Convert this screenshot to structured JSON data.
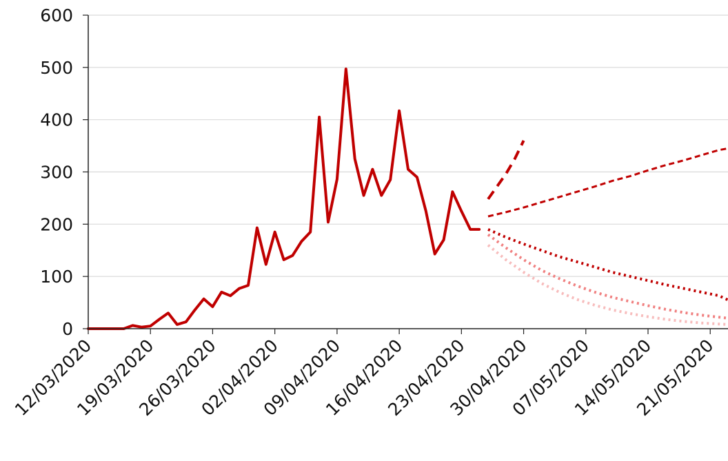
{
  "chart_data": {
    "type": "line",
    "title": "",
    "xlabel": "",
    "ylabel": "",
    "ylim": [
      0,
      600
    ],
    "y_ticks": [
      0,
      100,
      200,
      300,
      400,
      500,
      600
    ],
    "xlim": [
      "12/03/2020",
      "23/05/2020"
    ],
    "x_ticks": [
      "12/03/2020",
      "19/03/2020",
      "26/03/2020",
      "02/04/2020",
      "09/04/2020",
      "16/04/2020",
      "23/04/2020",
      "30/04/2020",
      "07/05/2020",
      "14/05/2020",
      "21/05/2020"
    ],
    "grid": "horizontal",
    "series": [
      {
        "style": "solid",
        "color": "#c00000",
        "x": [
          "12/03/2020",
          "13/03/2020",
          "14/03/2020",
          "15/03/2020",
          "16/03/2020",
          "17/03/2020",
          "18/03/2020",
          "19/03/2020",
          "20/03/2020",
          "21/03/2020",
          "22/03/2020",
          "23/03/2020",
          "24/03/2020",
          "25/03/2020",
          "26/03/2020",
          "27/03/2020",
          "28/03/2020",
          "29/03/2020",
          "30/03/2020",
          "31/03/2020",
          "01/04/2020",
          "02/04/2020",
          "03/04/2020",
          "04/04/2020",
          "05/04/2020",
          "06/04/2020",
          "07/04/2020",
          "08/04/2020",
          "09/04/2020",
          "10/04/2020",
          "11/04/2020",
          "12/04/2020",
          "13/04/2020",
          "14/04/2020",
          "15/04/2020",
          "16/04/2020",
          "17/04/2020",
          "18/04/2020",
          "19/04/2020",
          "20/04/2020",
          "21/04/2020",
          "22/04/2020",
          "23/04/2020",
          "24/04/2020",
          "25/04/2020"
        ],
        "y": [
          0,
          0,
          0,
          0,
          0,
          6,
          3,
          5,
          18,
          30,
          8,
          13,
          36,
          57,
          42,
          70,
          63,
          77,
          83,
          193,
          123,
          185,
          132,
          140,
          167,
          185,
          405,
          204,
          286,
          497,
          325,
          255,
          305,
          255,
          285,
          417,
          305,
          290,
          225,
          143,
          170,
          262,
          225,
          190,
          190
        ]
      },
      {
        "style": "dash",
        "color": "#c00000",
        "x": [
          "26/04/2020",
          "27/04/2020",
          "28/04/2020",
          "29/04/2020",
          "30/04/2020"
        ],
        "y": [
          248,
          272,
          296,
          325,
          360
        ]
      },
      {
        "style": "short-dash",
        "color": "#c00000",
        "x": [
          "26/04/2020",
          "28/04/2020",
          "30/04/2020",
          "02/05/2020",
          "04/05/2020",
          "06/05/2020",
          "08/05/2020",
          "10/05/2020",
          "12/05/2020",
          "14/05/2020",
          "16/05/2020",
          "18/05/2020",
          "20/05/2020",
          "22/05/2020",
          "23/05/2020"
        ],
        "y": [
          215,
          223,
          232,
          242,
          252,
          262,
          272,
          283,
          292,
          303,
          313,
          322,
          332,
          342,
          345
        ]
      },
      {
        "style": "dot",
        "color": "#c00000",
        "x": [
          "26/04/2020",
          "28/04/2020",
          "30/04/2020",
          "02/05/2020",
          "04/05/2020",
          "06/05/2020",
          "08/05/2020",
          "10/05/2020",
          "12/05/2020",
          "14/05/2020",
          "16/05/2020",
          "18/05/2020",
          "20/05/2020",
          "22/05/2020",
          "23/05/2020"
        ],
        "y": [
          190,
          175,
          162,
          150,
          138,
          128,
          118,
          108,
          100,
          92,
          84,
          77,
          70,
          63,
          55
        ]
      },
      {
        "style": "dot",
        "color": "#f08080",
        "x": [
          "26/04/2020",
          "28/04/2020",
          "30/04/2020",
          "02/05/2020",
          "04/05/2020",
          "06/05/2020",
          "08/05/2020",
          "10/05/2020",
          "12/05/2020",
          "14/05/2020",
          "16/05/2020",
          "18/05/2020",
          "20/05/2020",
          "22/05/2020",
          "23/05/2020"
        ],
        "y": [
          180,
          155,
          132,
          112,
          96,
          82,
          70,
          60,
          52,
          44,
          37,
          31,
          26,
          22,
          20
        ]
      },
      {
        "style": "dot",
        "color": "#f7bcbc",
        "x": [
          "26/04/2020",
          "28/04/2020",
          "30/04/2020",
          "02/05/2020",
          "04/05/2020",
          "06/05/2020",
          "08/05/2020",
          "10/05/2020",
          "12/05/2020",
          "14/05/2020",
          "16/05/2020",
          "18/05/2020",
          "20/05/2020",
          "22/05/2020",
          "23/05/2020"
        ],
        "y": [
          160,
          132,
          108,
          87,
          70,
          56,
          45,
          36,
          29,
          23,
          18,
          14,
          11,
          9,
          8
        ]
      }
    ]
  }
}
